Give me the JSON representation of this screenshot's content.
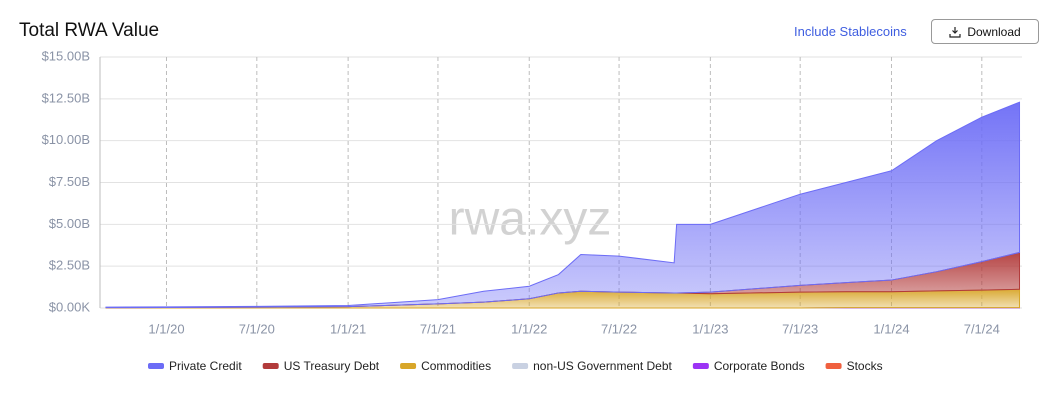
{
  "header": {
    "title": "Total RWA Value",
    "toggle": "Include Stablecoins",
    "button": "Download"
  },
  "watermark": "rwa.xyz",
  "chart_data": {
    "type": "stacked-area",
    "x": [
      "9/1/19",
      "1/1/20",
      "7/1/20",
      "1/1/21",
      "7/1/21",
      "10/1/21",
      "1/1/22",
      "3/1/22",
      "4/15/22",
      "7/1/22",
      "10/20/22",
      "10/25/22",
      "1/1/23",
      "7/1/23",
      "10/1/23",
      "1/1/24",
      "4/1/24",
      "7/1/24",
      "9/15/24"
    ],
    "xlim": [
      "8/20/19",
      "9/20/24"
    ],
    "xticks": [
      "1/1/20",
      "7/1/20",
      "1/1/21",
      "7/1/21",
      "1/1/22",
      "7/1/22",
      "1/1/23",
      "7/1/23",
      "1/1/24",
      "7/1/24"
    ],
    "ylim": [
      0,
      15
    ],
    "yticks": [
      {
        "value": 0,
        "label": "$0.00K"
      },
      {
        "value": 2.5,
        "label": "$2.50B"
      },
      {
        "value": 5,
        "label": "$5.00B"
      },
      {
        "value": 7.5,
        "label": "$7.50B"
      },
      {
        "value": 10,
        "label": "$10.00B"
      },
      {
        "value": 12.5,
        "label": "$12.50B"
      },
      {
        "value": 15,
        "label": "$15.00B"
      }
    ],
    "grid": true,
    "series": [
      {
        "name": "Private Credit",
        "color": "#6c6cf6",
        "values": [
          0.03,
          0.04,
          0.05,
          0.07,
          0.25,
          0.65,
          0.75,
          1.1,
          2.2,
          2.15,
          1.8,
          4.1,
          4.05,
          5.45,
          5.98,
          6.53,
          7.83,
          8.63,
          8.98
        ]
      },
      {
        "name": "US Treasury Debt",
        "color": "#b23b3b",
        "values": [
          0,
          0,
          0,
          0,
          0,
          0,
          0,
          0,
          0,
          0,
          0,
          0,
          0.1,
          0.4,
          0.55,
          0.7,
          1.15,
          1.7,
          2.2
        ]
      },
      {
        "name": "Commodities",
        "color": "#d8a629",
        "values": [
          0.02,
          0.03,
          0.05,
          0.08,
          0.25,
          0.35,
          0.55,
          0.9,
          1.0,
          0.95,
          0.9,
          0.9,
          0.85,
          0.95,
          0.95,
          0.95,
          1.0,
          1.05,
          1.1
        ]
      },
      {
        "name": "non-US Government Debt",
        "color": "#c9d1e2",
        "values": [
          0,
          0,
          0,
          0,
          0,
          0,
          0,
          0,
          0,
          0,
          0,
          0,
          0,
          0,
          0,
          0,
          0,
          0,
          0
        ]
      },
      {
        "name": "Corporate Bonds",
        "color": "#9c33f5",
        "values": [
          0,
          0,
          0,
          0,
          0,
          0,
          0,
          0,
          0,
          0,
          0,
          0,
          0,
          0,
          0.02,
          0.02,
          0.02,
          0.02,
          0.02
        ]
      },
      {
        "name": "Stocks",
        "color": "#f0603f",
        "values": [
          0,
          0,
          0,
          0,
          0,
          0,
          0,
          0,
          0,
          0,
          0,
          0,
          0,
          0,
          0,
          0,
          0,
          0,
          0
        ]
      }
    ]
  }
}
